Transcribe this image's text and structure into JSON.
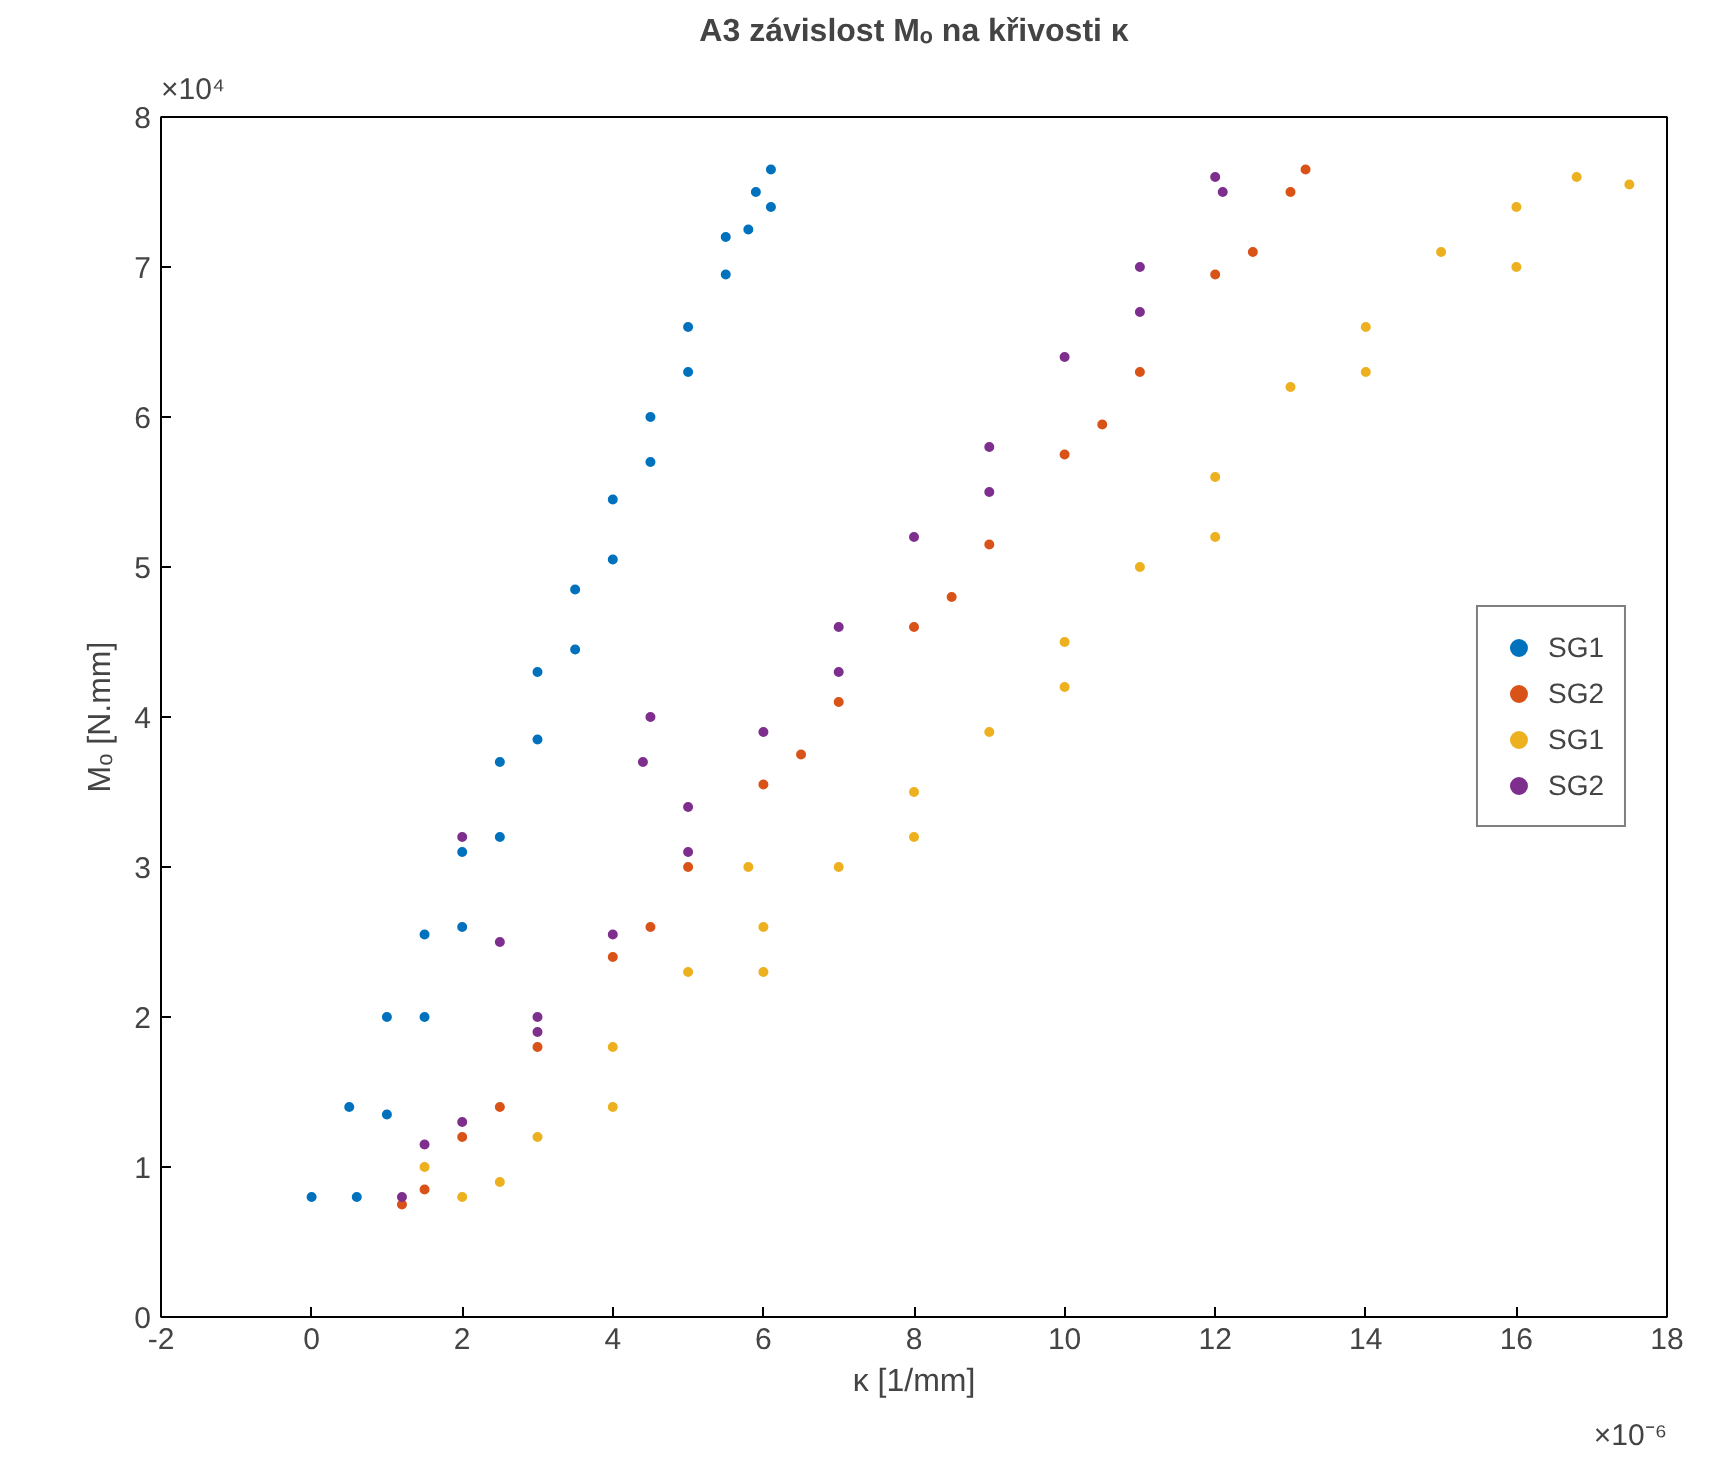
{
  "chart_data": {
    "type": "scatter",
    "title": "A3 závislost Mₒ na křivosti κ",
    "xlabel": "κ [1/mm]",
    "ylabel": "Mₒ [N.mm]",
    "annotations": [
      "×10⁴",
      "×10⁻⁶"
    ],
    "xlim": [
      -2,
      18
    ],
    "xticks": [
      -2,
      0,
      2,
      4,
      6,
      8,
      10,
      12,
      14,
      16,
      18
    ],
    "ylim": [
      0,
      8
    ],
    "yticks": [
      0,
      1,
      2,
      3,
      4,
      5,
      6,
      7,
      8
    ],
    "grid": false,
    "legend": "right",
    "marker": "circle",
    "series": [
      {
        "name": "SG1",
        "color": "#0072bd",
        "x": [
          0.0,
          0.5,
          1.0,
          1.5,
          2.0,
          2.5,
          3.0,
          3.5,
          4.0,
          4.5,
          5.0,
          5.5,
          5.9,
          6.1,
          6.1,
          5.8,
          5.5,
          5.0,
          4.5,
          4.0,
          3.5,
          3.0,
          2.5,
          2.0,
          1.5,
          1.0,
          0.6
        ],
        "values": [
          0.8,
          1.4,
          2.0,
          2.55,
          3.1,
          3.7,
          4.3,
          4.85,
          5.45,
          6.0,
          6.6,
          7.2,
          7.5,
          7.65,
          7.4,
          7.25,
          6.95,
          6.3,
          5.7,
          5.05,
          4.45,
          3.85,
          3.2,
          2.6,
          2.0,
          1.35,
          0.8
        ]
      },
      {
        "name": "SG2",
        "color": "#d95319",
        "x": [
          1.2,
          2,
          3,
          4,
          5,
          6,
          7,
          8,
          9,
          10,
          11,
          12,
          13,
          13.2,
          12.5,
          10.5,
          8.5,
          6.5,
          4.5,
          2.5,
          1.5
        ],
        "values": [
          0.75,
          1.2,
          1.8,
          2.4,
          3.0,
          3.55,
          4.1,
          4.6,
          5.15,
          5.75,
          6.3,
          6.95,
          7.5,
          7.65,
          7.1,
          5.95,
          4.8,
          3.75,
          2.6,
          1.4,
          0.85
        ]
      },
      {
        "name": "SG1",
        "color": "#edb120",
        "x": [
          1.5,
          2,
          3,
          4,
          5,
          6,
          7,
          8,
          9,
          10,
          11,
          12,
          13,
          14,
          15,
          16,
          16.8,
          17.5,
          16,
          14,
          12,
          10,
          8,
          6,
          4,
          2.5,
          5.8
        ],
        "values": [
          1.0,
          0.8,
          1.2,
          1.8,
          2.3,
          2.6,
          3.0,
          3.5,
          3.9,
          4.5,
          5.0,
          5.6,
          6.2,
          6.6,
          7.1,
          7.4,
          7.6,
          7.55,
          7.0,
          6.3,
          5.2,
          4.2,
          3.2,
          2.3,
          1.4,
          0.9,
          3.0
        ]
      },
      {
        "name": "SG2",
        "color": "#7e2f8e",
        "x": [
          1.2,
          2,
          3,
          4,
          5,
          6,
          7,
          8,
          9,
          10,
          11,
          12,
          12.1,
          11,
          9,
          7,
          5,
          3,
          1.5,
          4.5,
          2,
          4.4,
          2.5
        ],
        "values": [
          0.8,
          1.3,
          1.9,
          2.55,
          3.1,
          3.9,
          4.6,
          5.2,
          5.8,
          6.4,
          7.0,
          7.6,
          7.5,
          6.7,
          5.5,
          4.3,
          3.4,
          2.0,
          1.15,
          4.0,
          3.2,
          3.7,
          2.5
        ]
      }
    ]
  }
}
